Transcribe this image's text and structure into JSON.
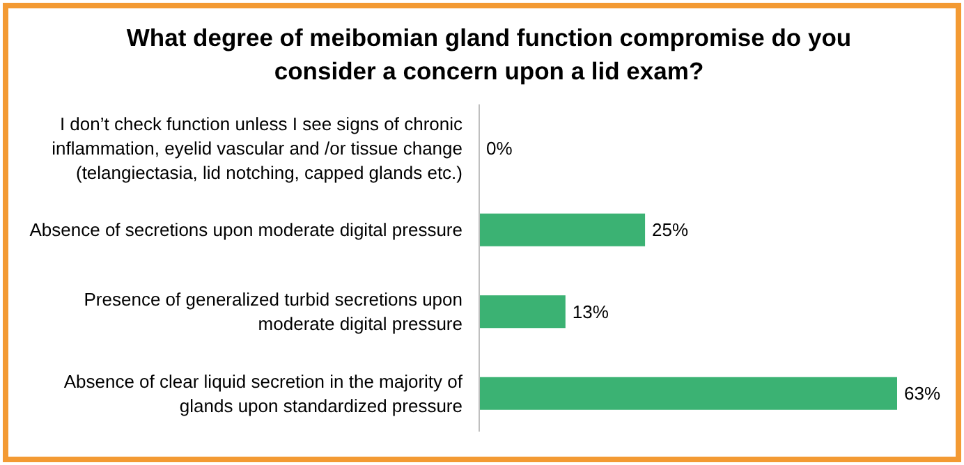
{
  "chart_data": {
    "type": "bar",
    "orientation": "horizontal",
    "title": "What degree of meibomian gland function compromise do you consider a concern upon a lid exam?",
    "categories": [
      "I don’t check function unless I see signs of chronic inflammation, eyelid vascular and /or tissue change (telangiectasia, lid notching, capped glands etc.)",
      "Absence of secretions upon moderate digital pressure",
      "Presence of generalized turbid secretions upon moderate digital pressure",
      "Absence of clear liquid secretion in the majority of glands upon standardized pressure"
    ],
    "values": [
      0,
      25,
      13,
      63
    ],
    "value_labels": [
      "0%",
      "25%",
      "13%",
      "63%"
    ],
    "color": "#3bb273"
  }
}
